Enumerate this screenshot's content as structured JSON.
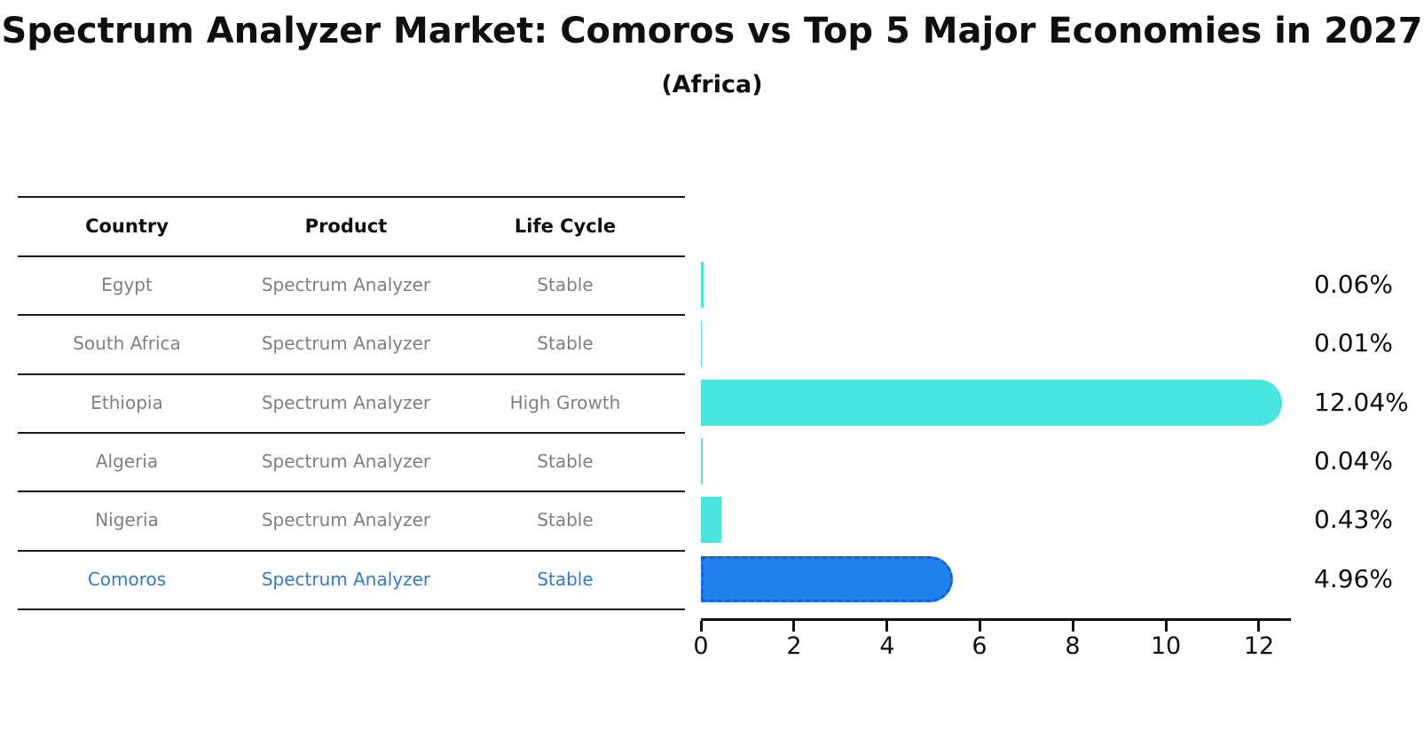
{
  "title": "Spectrum Analyzer Market: Comoros vs Top 5 Major Economies in 2027",
  "subtitle": "(Africa)",
  "table": {
    "headers": [
      "Country",
      "Product",
      "Life Cycle"
    ],
    "rows": [
      {
        "country": "Egypt",
        "product": "Spectrum Analyzer",
        "life_cycle": "Stable",
        "highlight": false
      },
      {
        "country": "South Africa",
        "product": "Spectrum Analyzer",
        "life_cycle": "Stable",
        "highlight": false
      },
      {
        "country": "Ethiopia",
        "product": "Spectrum Analyzer",
        "life_cycle": "High Growth",
        "highlight": false
      },
      {
        "country": "Algeria",
        "product": "Spectrum Analyzer",
        "life_cycle": "Stable",
        "highlight": false
      },
      {
        "country": "Nigeria",
        "product": "Spectrum Analyzer",
        "life_cycle": "Stable",
        "highlight": false
      },
      {
        "country": "Comoros",
        "product": "Spectrum Analyzer",
        "life_cycle": "Stable",
        "highlight": true
      }
    ]
  },
  "chart_data": {
    "type": "bar",
    "orientation": "horizontal",
    "categories": [
      "Egypt",
      "South Africa",
      "Ethiopia",
      "Algeria",
      "Nigeria",
      "Comoros"
    ],
    "values": [
      0.06,
      0.01,
      12.04,
      0.04,
      0.43,
      4.96
    ],
    "value_labels": [
      "0.06%",
      "0.01%",
      "12.04%",
      "0.04%",
      "0.43%",
      "4.96%"
    ],
    "xticks": [
      "0",
      "2",
      "4",
      "6",
      "8",
      "10",
      "12"
    ],
    "xlim": [
      0,
      12.7
    ],
    "grid": false,
    "legend": "none",
    "bar_color": "#49e5df",
    "highlight_index": 5,
    "highlight_bar_color": "#1f81ec",
    "highlight_border_color": "#1563cf",
    "highlight_text_color": "#2d7ccc",
    "row_text_color": "#7f7f7f"
  }
}
